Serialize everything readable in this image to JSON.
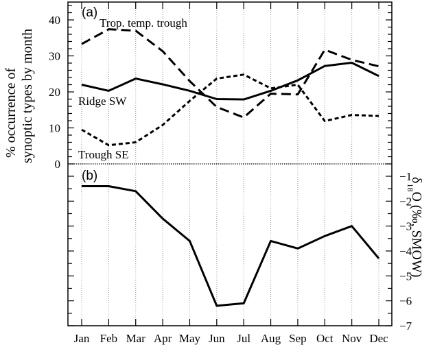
{
  "chart_data": [
    {
      "panel": "(a)",
      "type": "line",
      "title": "",
      "xlabel": "",
      "ylabel": "% occurrence of synoptic types by month",
      "ylabel_lines": [
        "% occurrence of",
        "synoptic types by month"
      ],
      "ylim": [
        0,
        45
      ],
      "yticks": [
        0,
        10,
        20,
        30,
        40
      ],
      "grid": "vertical dotted at months",
      "categories": [
        "Jan",
        "Feb",
        "Mar",
        "Apr",
        "May",
        "Jun",
        "Jul",
        "Aug",
        "Sep",
        "Oct",
        "Nov",
        "Dec"
      ],
      "series": [
        {
          "name": "Trop. temp. trough",
          "style": "long-dash",
          "values": [
            33.3,
            37.4,
            37.0,
            31.3,
            23.0,
            15.8,
            12.9,
            19.5,
            19.3,
            31.7,
            28.9,
            27.1
          ]
        },
        {
          "name": "Ridge SW",
          "style": "solid",
          "values": [
            22.0,
            20.3,
            23.7,
            22.1,
            20.3,
            18.0,
            17.9,
            20.3,
            23.2,
            27.2,
            28.1,
            24.4
          ]
        },
        {
          "name": "Trough SE",
          "style": "short-dash",
          "values": [
            9.5,
            5.2,
            6.0,
            10.8,
            17.5,
            23.7,
            24.8,
            21.0,
            22.0,
            11.9,
            13.6,
            13.3
          ]
        }
      ],
      "annotations": [
        "Trop. temp. trough",
        "Ridge SW",
        "Trough SE"
      ]
    },
    {
      "panel": "(b)",
      "type": "line",
      "title": "",
      "xlabel": "",
      "ylabel": "δ18O (‰, SMOW)",
      "ylabel_parts": {
        "delta": "δ",
        "sup": "18",
        "rest": "O (‰, SMOW)"
      },
      "ylim": [
        -7,
        -0.5
      ],
      "yticks": [
        -1,
        -2,
        -3,
        -4,
        -5,
        -6,
        -7
      ],
      "ytick_labels": [
        "−1",
        "−2",
        "−3",
        "−4",
        "−5",
        "−6",
        "−7"
      ],
      "yaxis_side": "right",
      "categories": [
        "Jan",
        "Feb",
        "Mar",
        "Apr",
        "May",
        "Jun",
        "Jul",
        "Aug",
        "Sep",
        "Oct",
        "Nov",
        "Dec"
      ],
      "series": [
        {
          "name": "δ18O",
          "style": "solid",
          "values": [
            -1.4,
            -1.4,
            -1.6,
            -2.7,
            -3.6,
            -6.2,
            -6.1,
            -3.6,
            -3.9,
            -3.4,
            -3.0,
            -4.3
          ]
        }
      ]
    }
  ],
  "labels": {
    "panel_a": "(a)",
    "panel_b": "(b)",
    "a_yticks": [
      "0",
      "10",
      "20",
      "30",
      "40"
    ],
    "b_yticks": [
      "−1",
      "−2",
      "−3",
      "−4",
      "−5",
      "−6",
      "−7"
    ],
    "months": [
      "Jan",
      "Feb",
      "Mar",
      "Apr",
      "May",
      "Jun",
      "Jul",
      "Aug",
      "Sep",
      "Oct",
      "Nov",
      "Dec"
    ],
    "series_trop": "Trop. temp. trough",
    "series_ridge": "Ridge SW",
    "series_trough": "Trough SE",
    "ylabel_a_line1": "% occurrence of",
    "ylabel_a_line2": "synoptic types by month",
    "ylabel_b_delta": "δ",
    "ylabel_b_sup": "18",
    "ylabel_b_rest": "O (‰, SMOW)"
  }
}
